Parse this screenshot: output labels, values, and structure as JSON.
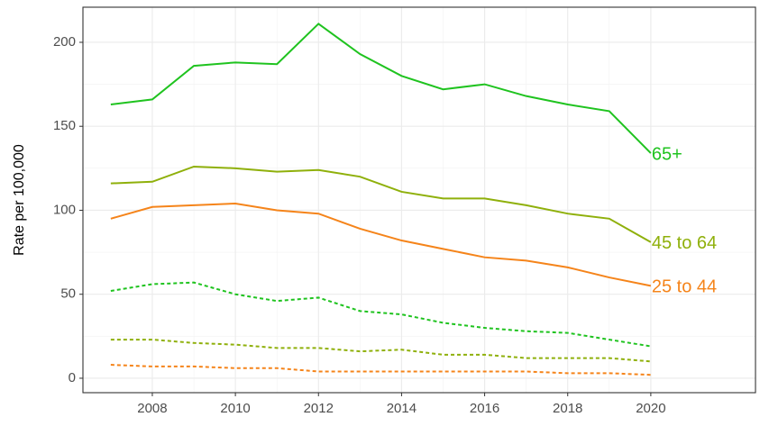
{
  "chart_data": {
    "type": "line",
    "y_label": "Rate per 100,000",
    "x": [
      2007,
      2008,
      2009,
      2010,
      2011,
      2012,
      2013,
      2014,
      2015,
      2016,
      2017,
      2018,
      2019,
      2020
    ],
    "series": [
      {
        "name": "65+",
        "color": "#1fc31f",
        "dashed": false,
        "values": [
          163,
          166,
          186,
          188,
          187,
          211,
          193,
          180,
          172,
          175,
          168,
          163,
          159,
          134
        ]
      },
      {
        "name": "45 to 64",
        "color": "#8fb00b",
        "dashed": false,
        "values": [
          116,
          117,
          126,
          125,
          123,
          124,
          120,
          111,
          107,
          107,
          103,
          98,
          95,
          81
        ]
      },
      {
        "name": "25 to 44",
        "color": "#f5841a",
        "dashed": false,
        "values": [
          95,
          102,
          103,
          104,
          100,
          98,
          89,
          82,
          77,
          72,
          70,
          66,
          60,
          55
        ]
      },
      {
        "color": "#1fc31f",
        "dashed": true,
        "values": [
          52,
          56,
          57,
          50,
          46,
          48,
          40,
          38,
          33,
          30,
          28,
          27,
          23,
          19
        ]
      },
      {
        "color": "#8fb00b",
        "dashed": true,
        "values": [
          23,
          23,
          21,
          20,
          18,
          18,
          16,
          17,
          14,
          14,
          12,
          12,
          12,
          10
        ]
      },
      {
        "color": "#f5841a",
        "dashed": true,
        "values": [
          8,
          7,
          7,
          6,
          6,
          4,
          4,
          4,
          4,
          4,
          4,
          3,
          3,
          2
        ]
      }
    ],
    "xlim": [
      2006.33,
      2022.52
    ],
    "xticks": [
      2008,
      2010,
      2012,
      2014,
      2016,
      2018,
      2020
    ],
    "ylim": [
      -8.6,
      220.9
    ],
    "yticks": [
      0,
      50,
      100,
      150,
      200
    ],
    "grid": true,
    "minor_grid": true
  }
}
